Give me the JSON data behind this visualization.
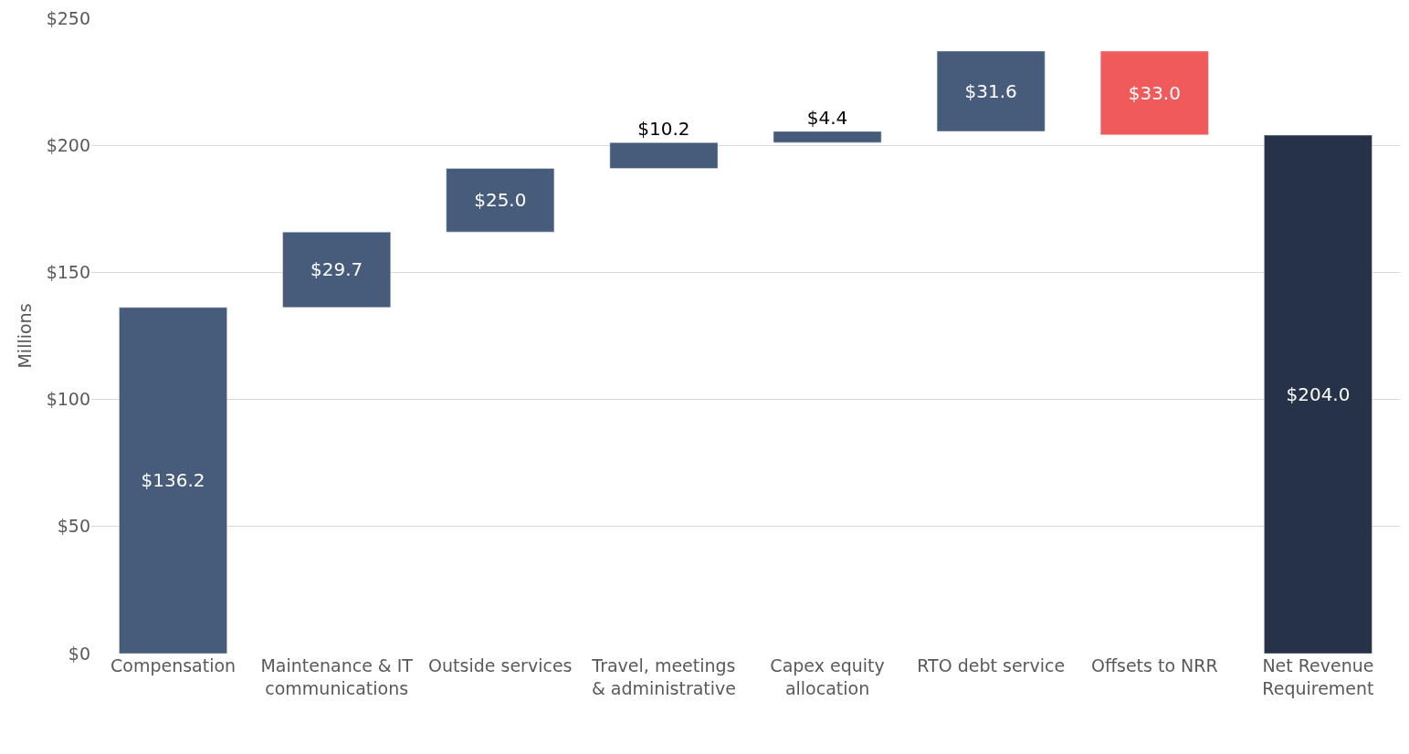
{
  "chart_data": {
    "type": "bar",
    "ylabel": "Millions",
    "categories": [
      "Compensation",
      "Maintenance & IT communications",
      "Outside services",
      "Travel, meetings & administrative",
      "Capex equity allocation",
      "RTO debt service",
      "Offsets to NRR",
      "Net Revenue Requirement"
    ],
    "values": [
      136.2,
      29.7,
      25.0,
      10.2,
      4.4,
      31.6,
      -33.0,
      204.0
    ],
    "base": [
      0,
      136.2,
      165.9,
      190.9,
      201.1,
      205.5,
      237.1,
      0
    ],
    "colors": [
      "#475c7a",
      "#475c7a",
      "#475c7a",
      "#475c7a",
      "#475c7a",
      "#475c7a",
      "#f05a5a",
      "#253247"
    ],
    "value_labels": [
      "$136.2",
      "$29.7",
      "$25.0",
      "$10.2",
      "$4.4",
      "$31.6",
      "$33.0",
      "$204.0"
    ],
    "ylim": [
      0,
      250
    ],
    "yticks": [
      {
        "value": 0,
        "label": "$0"
      },
      {
        "value": 50,
        "label": "$50"
      },
      {
        "value": 100,
        "label": "$100"
      },
      {
        "value": 150,
        "label": "$150"
      },
      {
        "value": 200,
        "label": "$200"
      },
      {
        "value": 250,
        "label": "$250"
      }
    ],
    "grid": "y"
  }
}
